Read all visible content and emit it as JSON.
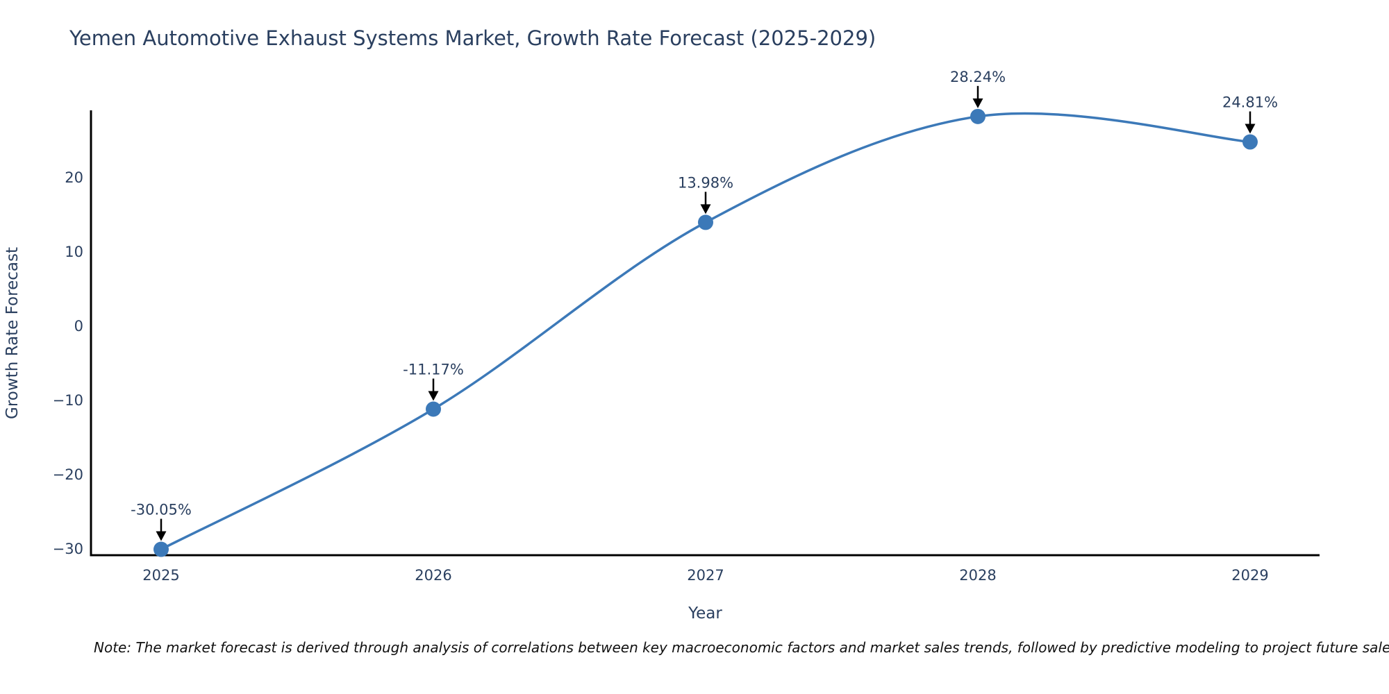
{
  "title": "Yemen Automotive Exhaust Systems Market, Growth Rate Forecast (2025-2029)",
  "note": "Note: The market forecast is derived through analysis of correlations between key macroeconomic factors and market sales trends, followed by predictive modeling to project future sales",
  "chart_data": {
    "type": "line",
    "line_shape": "spline",
    "x": [
      2025,
      2026,
      2027,
      2028,
      2029
    ],
    "series": [
      {
        "name": "Growth Rate Forecast",
        "values": [
          -30.05,
          -11.17,
          13.98,
          28.24,
          24.81
        ]
      }
    ],
    "point_labels": [
      "-30.05%",
      "-11.17%",
      "13.98%",
      "28.24%",
      "24.81%"
    ],
    "title": "Yemen Automotive Exhaust Systems Market, Growth Rate Forecast (2025-2029)",
    "xlabel": "Year",
    "ylabel": "Growth Rate Forecast",
    "x_ticks": [
      "2025",
      "2026",
      "2027",
      "2028",
      "2029"
    ],
    "y_ticks": [
      20,
      10,
      0,
      -10,
      -20,
      -30
    ],
    "ylim": [
      -30.9,
      29.1
    ],
    "grid": false,
    "legend": "none",
    "colors": {
      "line": "#3c79b8",
      "marker": "#3c79b8",
      "axis": "#000000",
      "tick_text": "#2a3f5f",
      "annotation_text": "#2a3f5f",
      "annotation_arrow": "#000000",
      "note_text": "#111111",
      "background": "#ffffff"
    }
  }
}
